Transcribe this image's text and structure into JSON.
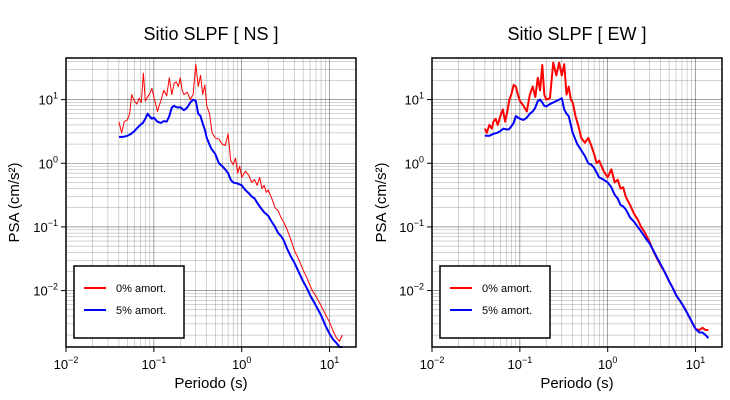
{
  "chart_data": [
    {
      "type": "line",
      "title": "Sitio SLPF [ NS ]",
      "xlabel": "Periodo (s)",
      "ylabel": "PSA (cm/s²)",
      "xscale": "log",
      "yscale": "log",
      "xlim": [
        0.01,
        20
      ],
      "ylim": [
        0.0013,
        45
      ],
      "x_ticks": [
        {
          "v": 0.01,
          "base": "10",
          "exp": "−2"
        },
        {
          "v": 0.1,
          "base": "10",
          "exp": "−1"
        },
        {
          "v": 1,
          "base": "10",
          "exp": "0"
        },
        {
          "v": 10,
          "base": "10",
          "exp": "1"
        }
      ],
      "y_ticks": [
        {
          "v": 0.01,
          "base": "10",
          "exp": "−2"
        },
        {
          "v": 0.1,
          "base": "10",
          "exp": "−1"
        },
        {
          "v": 1,
          "base": "10",
          "exp": "0"
        },
        {
          "v": 10,
          "base": "10",
          "exp": "1"
        }
      ],
      "grid": true,
      "legend": "bottom-left",
      "series": [
        {
          "name": "0% amort.",
          "color": "#ff0000",
          "width": 1,
          "x": [
            0.04,
            0.043,
            0.046,
            0.05,
            0.053,
            0.056,
            0.06,
            0.064,
            0.068,
            0.072,
            0.076,
            0.08,
            0.085,
            0.09,
            0.095,
            0.1,
            0.105,
            0.11,
            0.115,
            0.12,
            0.13,
            0.14,
            0.15,
            0.16,
            0.17,
            0.18,
            0.19,
            0.2,
            0.21,
            0.22,
            0.24,
            0.26,
            0.28,
            0.3,
            0.32,
            0.34,
            0.36,
            0.38,
            0.4,
            0.43,
            0.46,
            0.5,
            0.55,
            0.6,
            0.65,
            0.7,
            0.75,
            0.8,
            0.85,
            0.9,
            0.95,
            1.0,
            1.1,
            1.2,
            1.3,
            1.4,
            1.5,
            1.6,
            1.7,
            1.8,
            1.9,
            2.0,
            2.2,
            2.4,
            2.6,
            2.8,
            3.0,
            3.3,
            3.6,
            4.0,
            4.5,
            5.0,
            5.5,
            6.0,
            6.5,
            7.0,
            8.0,
            9.0,
            10.0,
            11.0,
            12.0,
            13.0,
            14.0
          ],
          "y": [
            4.5,
            3.0,
            4.5,
            4.8,
            6.0,
            12.0,
            9.5,
            8.5,
            10.5,
            9.0,
            26.0,
            9.5,
            11.0,
            12.5,
            15.0,
            11.0,
            8.5,
            6.5,
            8.0,
            9.5,
            14.0,
            11.5,
            22.0,
            12.0,
            18.0,
            19.0,
            16.0,
            22.0,
            14.0,
            12.0,
            13.0,
            10.0,
            12.0,
            36.0,
            16.0,
            24.0,
            12.0,
            17.0,
            8.0,
            6.0,
            3.0,
            2.5,
            2.4,
            2.0,
            1.9,
            2.9,
            1.1,
            0.95,
            1.2,
            0.7,
            0.9,
            0.6,
            0.75,
            0.65,
            0.5,
            0.55,
            0.45,
            0.6,
            0.4,
            0.45,
            0.35,
            0.38,
            0.28,
            0.2,
            0.18,
            0.14,
            0.12,
            0.09,
            0.065,
            0.042,
            0.03,
            0.021,
            0.016,
            0.012,
            0.0095,
            0.0082,
            0.0058,
            0.0042,
            0.0032,
            0.0023,
            0.0018,
            0.0016,
            0.002
          ]
        },
        {
          "name": "5% amort.",
          "color": "#0000ff",
          "width": 2,
          "x": [
            0.04,
            0.045,
            0.05,
            0.055,
            0.06,
            0.065,
            0.07,
            0.075,
            0.08,
            0.085,
            0.09,
            0.095,
            0.1,
            0.11,
            0.12,
            0.13,
            0.14,
            0.15,
            0.16,
            0.17,
            0.18,
            0.19,
            0.2,
            0.22,
            0.24,
            0.26,
            0.28,
            0.3,
            0.32,
            0.34,
            0.36,
            0.38,
            0.4,
            0.45,
            0.5,
            0.55,
            0.6,
            0.65,
            0.7,
            0.75,
            0.8,
            0.9,
            1.0,
            1.1,
            1.2,
            1.3,
            1.4,
            1.5,
            1.6,
            1.8,
            2.0,
            2.2,
            2.4,
            2.6,
            2.8,
            3.0,
            3.3,
            3.6,
            4.0,
            4.5,
            5.0,
            5.5,
            6.0,
            7.0,
            8.0,
            9.0,
            10.0,
            11.0,
            12.0,
            13.0,
            14.0
          ],
          "y": [
            2.6,
            2.6,
            2.7,
            2.9,
            3.2,
            3.6,
            4.0,
            4.3,
            5.0,
            6.0,
            5.4,
            5.0,
            5.2,
            4.5,
            4.3,
            4.6,
            4.5,
            5.5,
            7.5,
            8.0,
            7.6,
            7.5,
            7.6,
            6.8,
            7.5,
            9.0,
            10.0,
            9.5,
            6.0,
            5.5,
            4.2,
            3.4,
            2.5,
            1.7,
            1.4,
            1.0,
            0.9,
            0.8,
            0.7,
            0.55,
            0.5,
            0.48,
            0.45,
            0.38,
            0.34,
            0.3,
            0.28,
            0.24,
            0.21,
            0.17,
            0.15,
            0.12,
            0.1,
            0.08,
            0.072,
            0.062,
            0.045,
            0.035,
            0.027,
            0.019,
            0.014,
            0.011,
            0.0085,
            0.0058,
            0.0041,
            0.0028,
            0.0021,
            0.0017,
            0.0015,
            0.0013,
            0.0013
          ]
        }
      ]
    },
    {
      "type": "line",
      "title": "Sitio SLPF [ EW ]",
      "xlabel": "Periodo (s)",
      "ylabel": "PSA (cm/s²)",
      "xscale": "log",
      "yscale": "log",
      "xlim": [
        0.01,
        20
      ],
      "ylim": [
        0.0013,
        45
      ],
      "x_ticks": [
        {
          "v": 0.01,
          "base": "10",
          "exp": "−2"
        },
        {
          "v": 0.1,
          "base": "10",
          "exp": "−1"
        },
        {
          "v": 1,
          "base": "10",
          "exp": "0"
        },
        {
          "v": 10,
          "base": "10",
          "exp": "1"
        }
      ],
      "y_ticks": [
        {
          "v": 0.01,
          "base": "10",
          "exp": "−2"
        },
        {
          "v": 0.1,
          "base": "10",
          "exp": "−1"
        },
        {
          "v": 1,
          "base": "10",
          "exp": "0"
        },
        {
          "v": 10,
          "base": "10",
          "exp": "1"
        }
      ],
      "grid": true,
      "legend": "bottom-left",
      "series": [
        {
          "name": "0% amort.",
          "color": "#ff0000",
          "width": 2,
          "x": [
            0.04,
            0.042,
            0.045,
            0.048,
            0.05,
            0.053,
            0.056,
            0.06,
            0.064,
            0.068,
            0.072,
            0.076,
            0.08,
            0.085,
            0.09,
            0.095,
            0.1,
            0.11,
            0.12,
            0.13,
            0.14,
            0.15,
            0.16,
            0.17,
            0.18,
            0.19,
            0.2,
            0.22,
            0.24,
            0.26,
            0.28,
            0.3,
            0.32,
            0.34,
            0.36,
            0.38,
            0.4,
            0.43,
            0.46,
            0.5,
            0.55,
            0.6,
            0.65,
            0.7,
            0.75,
            0.8,
            0.9,
            1.0,
            1.1,
            1.2,
            1.3,
            1.4,
            1.5,
            1.6,
            1.8,
            2.0,
            2.2,
            2.4,
            2.6,
            2.8,
            3.0,
            3.3,
            3.6,
            4.0,
            4.5,
            5.0,
            5.5,
            6.0,
            7.0,
            8.0,
            9.0,
            10.0,
            11.0,
            12.0,
            13.0,
            14.0
          ],
          "y": [
            3.5,
            3.0,
            4.0,
            3.5,
            4.5,
            5.0,
            4.0,
            5.5,
            7.0,
            4.5,
            6.5,
            10.0,
            12.0,
            17.0,
            16.0,
            12.0,
            9.5,
            8.0,
            6.5,
            12.0,
            16.0,
            11.0,
            22.0,
            14.0,
            35.0,
            12.0,
            10.0,
            10.5,
            38.0,
            24.0,
            38.0,
            24.0,
            36.0,
            12.0,
            16.0,
            10.0,
            9.0,
            5.5,
            4.0,
            2.5,
            2.1,
            2.5,
            1.9,
            1.4,
            1.0,
            1.1,
            0.75,
            0.6,
            0.8,
            0.5,
            0.55,
            0.4,
            0.42,
            0.3,
            0.22,
            0.16,
            0.13,
            0.1,
            0.085,
            0.07,
            0.058,
            0.042,
            0.033,
            0.025,
            0.019,
            0.014,
            0.011,
            0.0085,
            0.0062,
            0.0045,
            0.0033,
            0.0025,
            0.0024,
            0.0026,
            0.0024,
            0.0024
          ]
        },
        {
          "name": "5% amort.",
          "color": "#0000ff",
          "width": 2,
          "x": [
            0.04,
            0.045,
            0.05,
            0.055,
            0.06,
            0.065,
            0.07,
            0.075,
            0.08,
            0.085,
            0.09,
            0.1,
            0.11,
            0.12,
            0.13,
            0.14,
            0.15,
            0.16,
            0.17,
            0.18,
            0.19,
            0.2,
            0.22,
            0.24,
            0.26,
            0.28,
            0.3,
            0.32,
            0.34,
            0.36,
            0.38,
            0.4,
            0.45,
            0.5,
            0.55,
            0.6,
            0.65,
            0.7,
            0.8,
            0.9,
            1.0,
            1.1,
            1.2,
            1.3,
            1.4,
            1.5,
            1.6,
            1.8,
            2.0,
            2.2,
            2.4,
            2.6,
            2.8,
            3.0,
            3.3,
            3.6,
            4.0,
            4.5,
            5.0,
            5.5,
            6.0,
            7.0,
            8.0,
            9.0,
            10.0,
            11.0,
            12.0,
            13.0,
            14.0
          ],
          "y": [
            2.7,
            2.7,
            2.9,
            3.0,
            3.2,
            3.5,
            3.4,
            3.4,
            3.8,
            4.3,
            5.5,
            5.0,
            4.8,
            5.2,
            6.0,
            6.5,
            7.5,
            9.5,
            10.0,
            9.0,
            8.0,
            7.8,
            8.5,
            9.0,
            9.5,
            10.0,
            10.5,
            7.0,
            6.0,
            5.5,
            4.0,
            3.0,
            2.0,
            1.6,
            1.3,
            1.0,
            0.95,
            0.85,
            0.6,
            0.55,
            0.5,
            0.42,
            0.32,
            0.28,
            0.22,
            0.21,
            0.19,
            0.14,
            0.12,
            0.1,
            0.085,
            0.072,
            0.062,
            0.055,
            0.043,
            0.034,
            0.026,
            0.019,
            0.014,
            0.011,
            0.0085,
            0.0062,
            0.0045,
            0.0033,
            0.0025,
            0.0022,
            0.0022,
            0.002,
            0.0018
          ]
        }
      ]
    }
  ]
}
